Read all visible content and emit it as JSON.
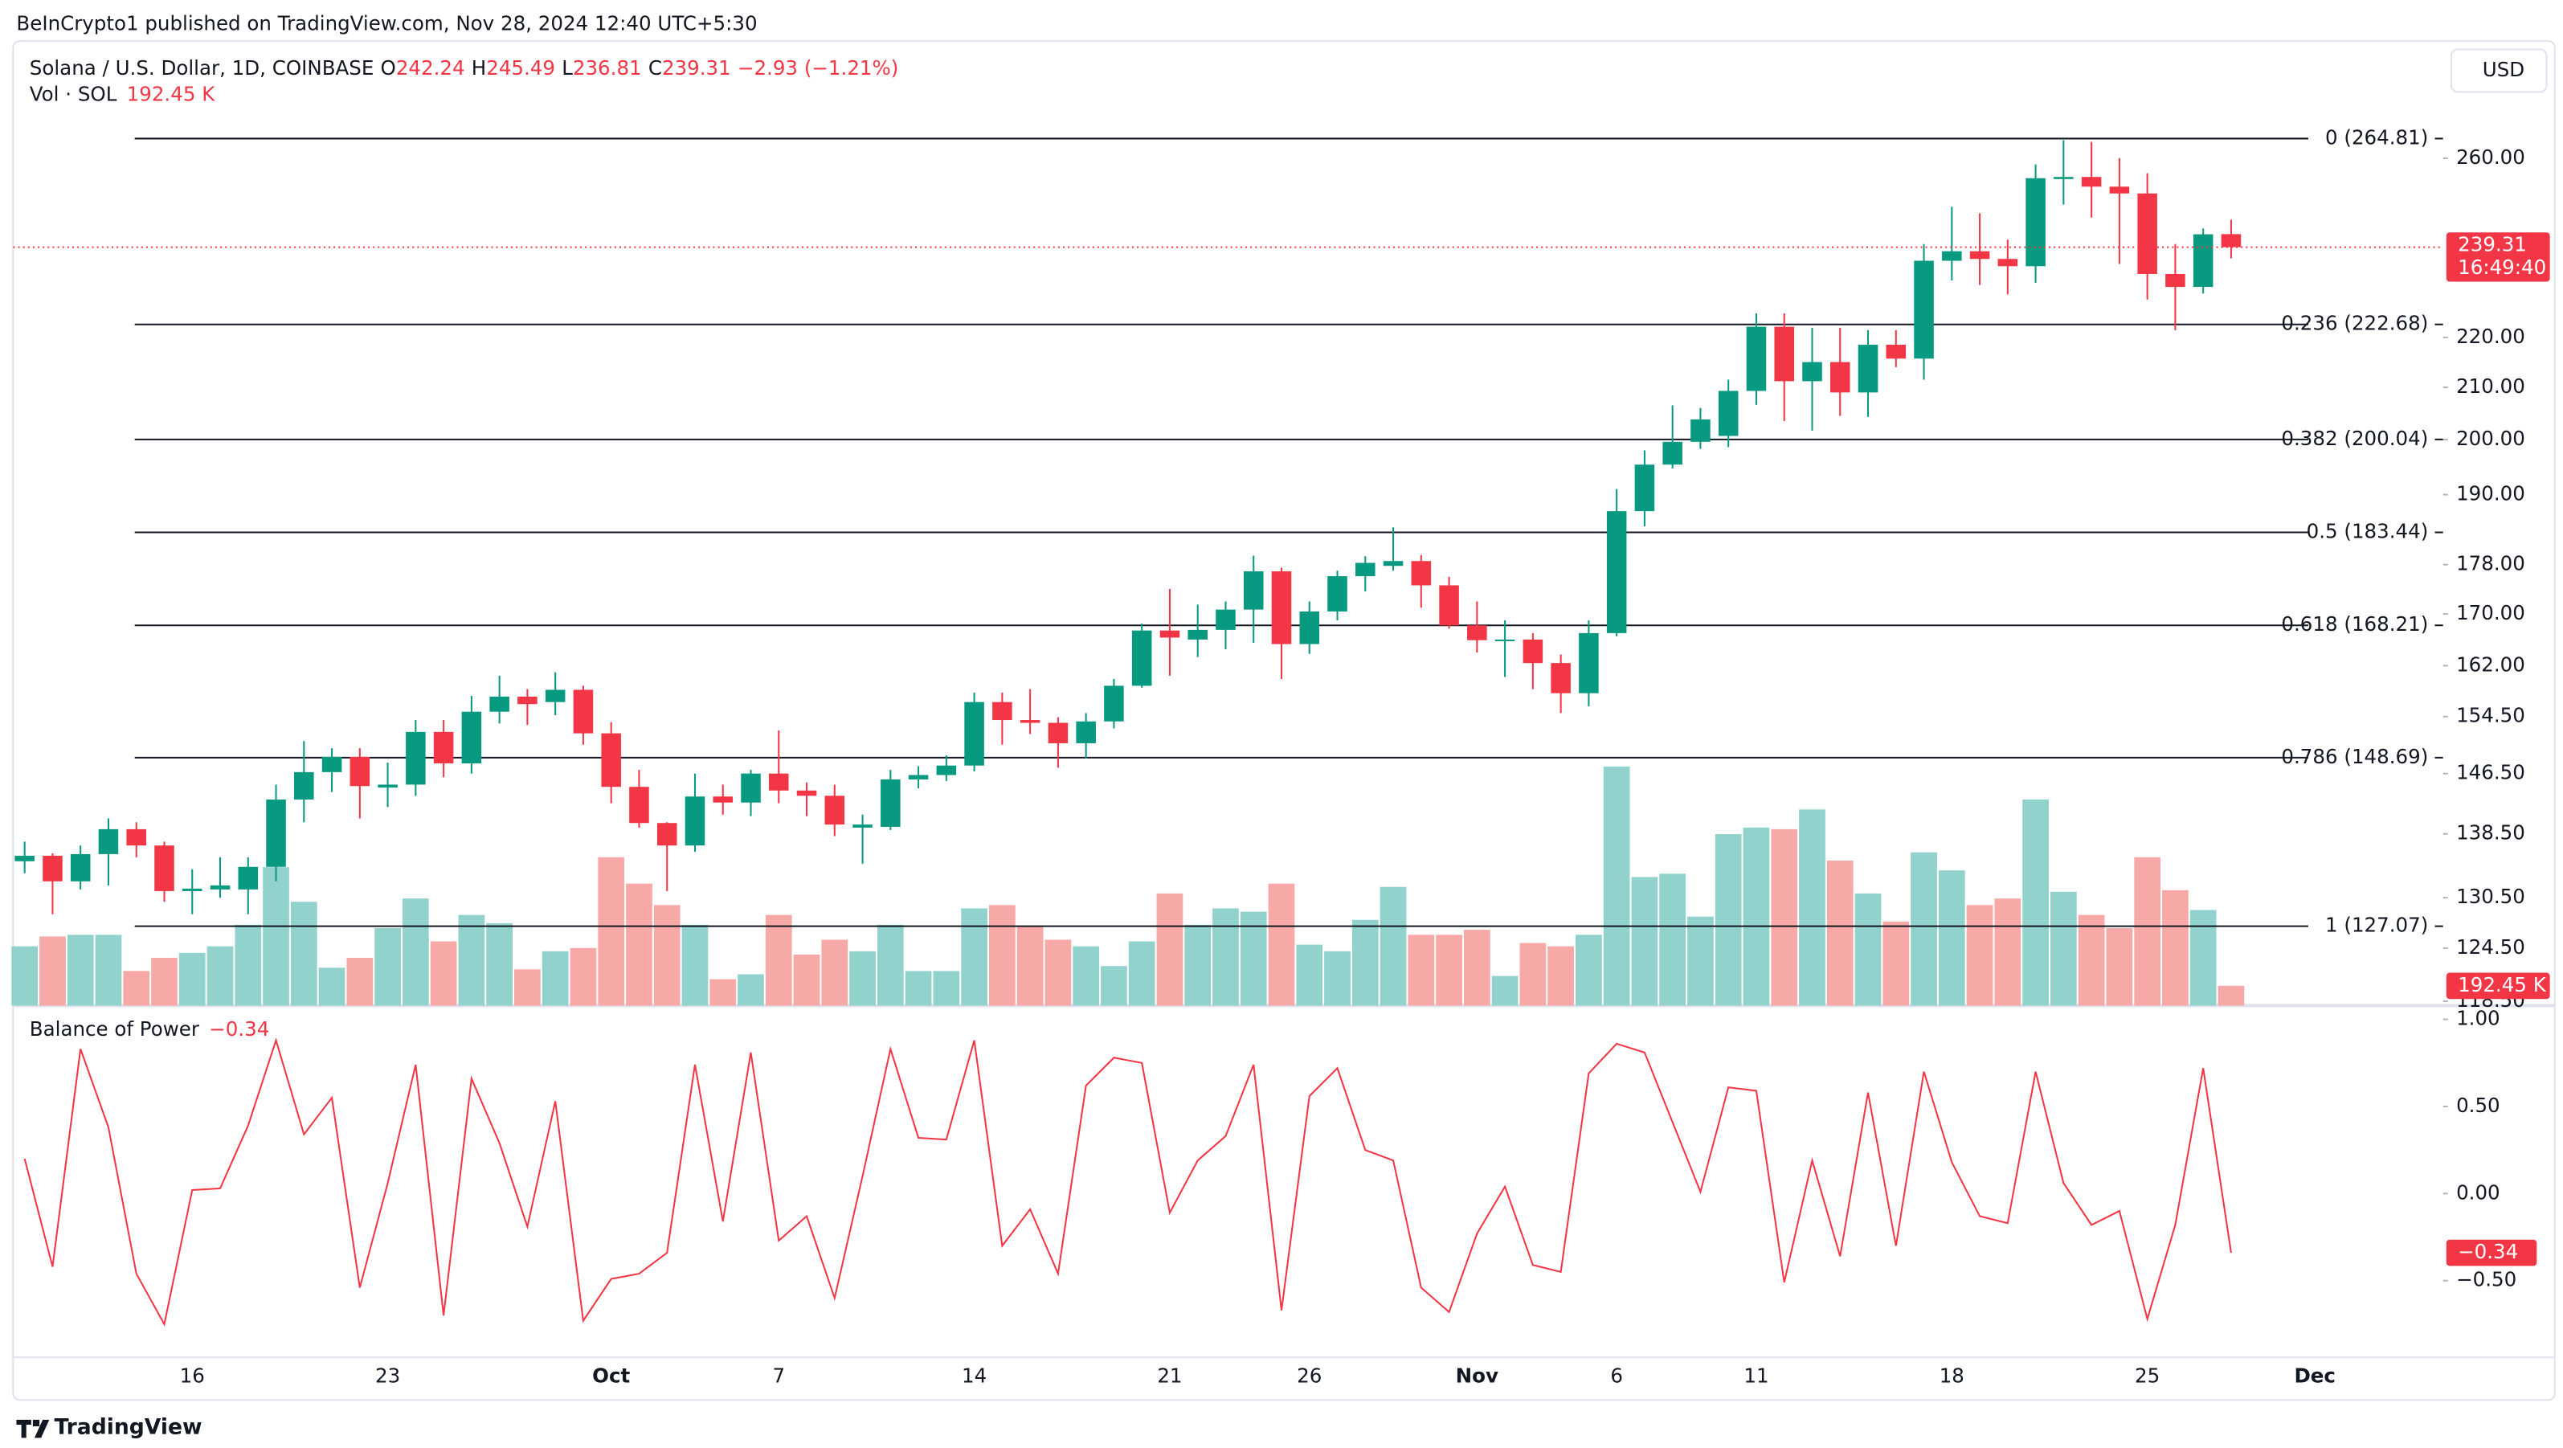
{
  "header": {
    "publisher": "BeInCrypto1 published on TradingView.com, Nov 28, 2024 12:40 UTC+5:30",
    "symbol": "Solana / U.S. Dollar, 1D, COINBASE",
    "ohlc_keys": [
      "O",
      "H",
      "L",
      "C"
    ],
    "change": "−2.93 (−1.21%)",
    "vol_label": "Vol · SOL",
    "currency": "USD",
    "countdown": "16:49:40",
    "footer": "TradingView"
  },
  "chart_data": [
    {
      "type": "candlestick",
      "log_scale": true,
      "grid": false,
      "categories": [
        null,
        null,
        null,
        null,
        null,
        null,
        "16",
        null,
        null,
        null,
        null,
        null,
        null,
        "23",
        null,
        null,
        null,
        null,
        null,
        null,
        null,
        "Oct",
        null,
        null,
        null,
        null,
        null,
        "7",
        null,
        null,
        null,
        null,
        null,
        null,
        "14",
        null,
        null,
        null,
        null,
        null,
        null,
        "21",
        null,
        null,
        null,
        null,
        "26",
        null,
        null,
        null,
        null,
        null,
        "Nov",
        null,
        null,
        null,
        null,
        "6",
        null,
        null,
        null,
        null,
        "11",
        null,
        null,
        null,
        null,
        null,
        null,
        "18",
        null,
        null,
        null,
        null,
        null,
        null,
        "25",
        null,
        null,
        null
      ],
      "extra_xtick_label": "Dec",
      "open": [
        135.0,
        135.7,
        132.5,
        135.9,
        139.1,
        137.0,
        131.3,
        131.5,
        131.5,
        134.3,
        143.0,
        146.7,
        148.8,
        144.6,
        145.0,
        152.3,
        147.9,
        155.2,
        157.4,
        156.6,
        158.4,
        152.1,
        144.7,
        139.9,
        137.0,
        143.4,
        142.6,
        146.5,
        144.2,
        143.5,
        139.3,
        139.4,
        145.7,
        146.3,
        147.6,
        156.6,
        154.0,
        153.6,
        150.7,
        153.8,
        159.0,
        167.4,
        166.0,
        167.5,
        170.7,
        176.9,
        165.3,
        170.4,
        176.1,
        177.8,
        178.6,
        174.6,
        168.2,
        165.8,
        166.0,
        162.4,
        157.9,
        167.0,
        187.1,
        195.4,
        199.6,
        200.7,
        209.3,
        222.2,
        211.2,
        215.0,
        209.0,
        218.5,
        215.7,
        236.3,
        238.4,
        236.7,
        235.1,
        255.0,
        255.5,
        253.2,
        251.6,
        233.4,
        230.6,
        242.24
      ],
      "high": [
        137.5,
        136.0,
        137.0,
        140.5,
        140.0,
        137.5,
        134.0,
        135.5,
        135.5,
        145.0,
        151.0,
        150.0,
        150.0,
        148.0,
        154.0,
        154.0,
        157.5,
        160.5,
        158.5,
        161.0,
        159.0,
        153.7,
        147.0,
        140.0,
        146.5,
        145.0,
        147.0,
        152.5,
        145.3,
        145.0,
        141.0,
        147.0,
        147.5,
        149.0,
        158.0,
        158.0,
        158.5,
        154.4,
        155.0,
        160.0,
        168.5,
        174.0,
        171.5,
        172.0,
        179.5,
        177.5,
        172.0,
        177.0,
        179.4,
        184.3,
        179.6,
        176.0,
        172.0,
        169.0,
        167.0,
        163.7,
        169.0,
        191.0,
        198.0,
        206.5,
        206.0,
        211.5,
        225.0,
        225.0,
        222.0,
        222.0,
        221.5,
        221.5,
        240.0,
        248.5,
        247.0,
        241.0,
        258.5,
        264.4,
        264.0,
        260.0,
        256.4,
        240.0,
        243.5,
        245.49
      ],
      "low": [
        133.5,
        128.5,
        131.5,
        132.0,
        135.5,
        130.0,
        128.5,
        130.5,
        128.5,
        132.5,
        140.0,
        144.0,
        140.5,
        142.0,
        143.5,
        146.0,
        146.5,
        153.5,
        153.3,
        154.7,
        150.5,
        142.5,
        139.3,
        131.3,
        136.2,
        141.0,
        140.8,
        142.5,
        140.8,
        138.2,
        134.7,
        139.0,
        144.5,
        145.5,
        146.8,
        150.5,
        152.0,
        147.3,
        148.6,
        152.8,
        158.7,
        160.5,
        163.3,
        164.5,
        165.5,
        160.0,
        163.8,
        169.0,
        173.6,
        177.0,
        171.0,
        167.7,
        164.0,
        160.3,
        158.5,
        155.0,
        156.0,
        166.5,
        184.5,
        194.7,
        198.3,
        198.6,
        206.6,
        203.5,
        201.7,
        204.5,
        204.3,
        214.0,
        211.5,
        232.0,
        231.0,
        229.0,
        231.5,
        249.0,
        246.0,
        235.6,
        227.9,
        221.5,
        229.2,
        236.81
      ],
      "close": [
        135.7,
        132.5,
        135.9,
        139.1,
        137.0,
        131.3,
        131.6,
        132.0,
        134.3,
        143.0,
        146.7,
        148.8,
        144.8,
        145.0,
        152.3,
        147.9,
        155.2,
        157.4,
        156.3,
        158.4,
        152.1,
        144.7,
        139.9,
        137.0,
        143.4,
        142.6,
        146.5,
        144.2,
        143.5,
        139.7,
        139.7,
        145.7,
        146.3,
        147.6,
        156.6,
        154.0,
        153.6,
        150.7,
        153.8,
        159.0,
        167.4,
        166.3,
        167.5,
        170.7,
        176.9,
        165.3,
        170.4,
        176.1,
        178.3,
        178.6,
        174.6,
        168.2,
        165.9,
        166.0,
        162.4,
        157.9,
        167.0,
        187.1,
        195.4,
        199.6,
        203.8,
        209.3,
        222.2,
        211.2,
        215.0,
        209.0,
        218.5,
        215.7,
        236.3,
        238.4,
        236.7,
        235.1,
        255.2,
        255.5,
        253.2,
        251.6,
        233.4,
        230.6,
        242.2,
        239.31
      ],
      "volume": [
        577000,
        673000,
        689000,
        689000,
        337000,
        465000,
        513000,
        577000,
        786000,
        1347000,
        1010000,
        369000,
        465000,
        754000,
        1042000,
        625000,
        882000,
        802000,
        353000,
        529000,
        561000,
        1443000,
        1187000,
        978000,
        786000,
        257000,
        305000,
        882000,
        497000,
        641000,
        529000,
        786000,
        337000,
        337000,
        946000,
        978000,
        770000,
        641000,
        577000,
        385000,
        625000,
        1091000,
        786000,
        946000,
        914000,
        1187000,
        593000,
        529000,
        834000,
        1155000,
        689000,
        689000,
        738000,
        289000,
        609000,
        577000,
        689000,
        2325000,
        1251000,
        1283000,
        866000,
        1668000,
        1732000,
        1716000,
        1908000,
        1411000,
        1091000,
        818000,
        1491000,
        1315000,
        978000,
        1042000,
        2005000,
        1107000,
        882000,
        754000,
        1443000,
        1123000,
        930000,
        192450
      ],
      "volume_last_label": "192.45 K",
      "vol_lim": [
        0,
        9380000
      ],
      "up_color": "#089981",
      "down_color": "#f23645",
      "up_volume_color": "#92d2cc",
      "down_volume_color": "#f7a9a7",
      "ylim": [
        118,
        290
      ],
      "yticks": [
        {
          "value": 260,
          "label": "260.00"
        },
        {
          "value": 220,
          "label": "220.00"
        },
        {
          "value": 210,
          "label": "210.00"
        },
        {
          "value": 200,
          "label": "200.00"
        },
        {
          "value": 190,
          "label": "190.00"
        },
        {
          "value": 178,
          "label": "178.00"
        },
        {
          "value": 170,
          "label": "170.00"
        },
        {
          "value": 162,
          "label": "162.00"
        },
        {
          "value": 154.5,
          "label": "154.50"
        },
        {
          "value": 146.5,
          "label": "146.50"
        },
        {
          "value": 138.5,
          "label": "138.50"
        },
        {
          "value": 130.5,
          "label": "130.50"
        },
        {
          "value": 124.5,
          "label": "124.50"
        },
        {
          "value": 118.5,
          "label": "118.50"
        }
      ],
      "fib_levels": [
        {
          "value": 264.81,
          "label": "0 (264.81)"
        },
        {
          "value": 222.68,
          "label": "0.236 (222.68)"
        },
        {
          "value": 200.04,
          "label": "0.382 (200.04)"
        },
        {
          "value": 183.44,
          "label": "0.5 (183.44)"
        },
        {
          "value": 168.21,
          "label": "0.618 (168.21)"
        },
        {
          "value": 148.69,
          "label": "0.786 (148.69)"
        },
        {
          "value": 127.07,
          "label": "1 (127.07)"
        }
      ],
      "fib_color": "#131722"
    },
    {
      "type": "line",
      "title": "Balance of Power",
      "color": "#f23645",
      "values": [
        0.2,
        -0.42,
        0.83,
        0.38,
        -0.46,
        -0.75,
        0.02,
        0.03,
        0.39,
        0.88,
        0.34,
        0.55,
        -0.54,
        0.06,
        0.74,
        -0.7,
        0.66,
        0.29,
        -0.19,
        0.53,
        -0.73,
        -0.49,
        -0.46,
        -0.34,
        0.74,
        -0.16,
        0.81,
        -0.27,
        -0.13,
        -0.6,
        0.1,
        0.83,
        0.32,
        0.31,
        0.88,
        -0.3,
        -0.09,
        -0.46,
        0.62,
        0.78,
        0.75,
        -0.11,
        0.19,
        0.33,
        0.74,
        -0.67,
        0.56,
        0.72,
        0.25,
        0.19,
        -0.54,
        -0.68,
        -0.23,
        0.04,
        -0.41,
        -0.45,
        0.69,
        0.86,
        0.81,
        0.41,
        0.01,
        0.61,
        0.59,
        -0.51,
        0.19,
        -0.36,
        0.58,
        -0.3,
        0.7,
        0.18,
        -0.13,
        -0.17,
        0.7,
        0.06,
        -0.18,
        -0.1,
        -0.72,
        -0.18,
        0.72,
        -0.34
      ],
      "value_labels": [
        null,
        null,
        null,
        null,
        null,
        null,
        null,
        null,
        null,
        null,
        null,
        null,
        null,
        null,
        null,
        null,
        null,
        null,
        null,
        null,
        null,
        null,
        null,
        null,
        null,
        null,
        null,
        null,
        null,
        null,
        null,
        null,
        null,
        null,
        null,
        null,
        null,
        null,
        null,
        null,
        null,
        null,
        null,
        null,
        null,
        null,
        null,
        null,
        null,
        null,
        null,
        null,
        null,
        null,
        null,
        null,
        null,
        null,
        null,
        null,
        null,
        null,
        null,
        null,
        null,
        null,
        null,
        null,
        null,
        null,
        null,
        null,
        null,
        null,
        null,
        null,
        null,
        null,
        null,
        "−0.34"
      ],
      "ylim": [
        -0.94,
        1.06
      ],
      "yticks": [
        {
          "value": 1,
          "label": "1.00"
        },
        {
          "value": 0.5,
          "label": "0.50"
        },
        {
          "value": 0,
          "label": "0.00"
        },
        {
          "value": -0.5,
          "label": "−0.50"
        }
      ]
    }
  ]
}
